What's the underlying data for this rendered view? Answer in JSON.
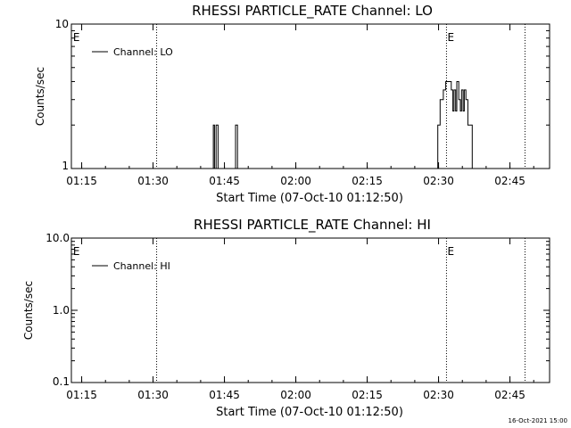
{
  "footer_timestamp": "16-Oct-2021 15:00",
  "chart_data": [
    {
      "type": "line",
      "title": "RHESSI PARTICLE_RATE Channel: LO",
      "xlabel": "Start Time (07-Oct-10 01:12:50)",
      "ylabel": "Counts/sec",
      "yscale": "log",
      "ylim": [
        1,
        10
      ],
      "xlim": [
        "01:12:50",
        "02:53:20"
      ],
      "x_ticks": [
        "01:15",
        "01:30",
        "01:45",
        "02:00",
        "02:15",
        "02:30",
        "02:45"
      ],
      "y_ticks": [
        "1",
        "10"
      ],
      "legend": {
        "label": "Channel: LO",
        "placement": "top-left"
      },
      "markers": [
        {
          "label": "E",
          "time": "01:13:00",
          "dotted": false
        },
        {
          "label": "",
          "time": "01:30:45",
          "dotted": true
        },
        {
          "label": "E",
          "time": "02:31:40",
          "dotted": true
        },
        {
          "label": "",
          "time": "02:48:10",
          "dotted": true
        }
      ],
      "series": [
        {
          "name": "Channel: LO",
          "points": [
            [
              "01:42:40",
              1
            ],
            [
              "01:42:40",
              2
            ],
            [
              "01:42:55",
              2
            ],
            [
              "01:42:55",
              1
            ],
            [
              "01:43:15",
              1
            ],
            [
              "01:43:15",
              2
            ],
            [
              "01:43:40",
              2
            ],
            [
              "01:43:40",
              1
            ],
            [
              "01:47:20",
              1
            ],
            [
              "01:47:20",
              2
            ],
            [
              "01:47:45",
              2
            ],
            [
              "01:47:45",
              1
            ],
            [
              "02:29:50",
              1
            ],
            [
              "02:29:50",
              2
            ],
            [
              "02:30:20",
              2
            ],
            [
              "02:30:20",
              3
            ],
            [
              "02:31:00",
              3
            ],
            [
              "02:31:00",
              3.5
            ],
            [
              "02:31:30",
              3.5
            ],
            [
              "02:31:30",
              4
            ],
            [
              "02:32:40",
              4
            ],
            [
              "02:32:40",
              3.5
            ],
            [
              "02:33:00",
              3.5
            ],
            [
              "02:33:00",
              2.5
            ],
            [
              "02:33:15",
              2.5
            ],
            [
              "02:33:15",
              3.5
            ],
            [
              "02:33:35",
              3.5
            ],
            [
              "02:33:35",
              2.5
            ],
            [
              "02:33:50",
              2.5
            ],
            [
              "02:33:50",
              4
            ],
            [
              "02:34:15",
              4
            ],
            [
              "02:34:15",
              3
            ],
            [
              "02:34:35",
              3
            ],
            [
              "02:34:35",
              2.5
            ],
            [
              "02:34:50",
              2.5
            ],
            [
              "02:34:50",
              3.5
            ],
            [
              "02:35:10",
              3.5
            ],
            [
              "02:35:10",
              2.5
            ],
            [
              "02:35:25",
              2.5
            ],
            [
              "02:35:25",
              3.5
            ],
            [
              "02:35:45",
              3.5
            ],
            [
              "02:35:45",
              3
            ],
            [
              "02:36:10",
              3
            ],
            [
              "02:36:10",
              2
            ],
            [
              "02:37:05",
              2
            ],
            [
              "02:37:05",
              1
            ]
          ]
        }
      ]
    },
    {
      "type": "line",
      "title": "RHESSI PARTICLE_RATE Channel: HI",
      "xlabel": "Start Time (07-Oct-10 01:12:50)",
      "ylabel": "Counts/sec",
      "yscale": "log",
      "ylim": [
        0.1,
        10
      ],
      "xlim": [
        "01:12:50",
        "02:53:20"
      ],
      "x_ticks": [
        "01:15",
        "01:30",
        "01:45",
        "02:00",
        "02:15",
        "02:30",
        "02:45"
      ],
      "y_ticks": [
        "0.1",
        "1.0",
        "10.0"
      ],
      "legend": {
        "label": "Channel: HI",
        "placement": "top-left"
      },
      "markers": [
        {
          "label": "E",
          "time": "01:13:00",
          "dotted": false
        },
        {
          "label": "",
          "time": "01:30:45",
          "dotted": true
        },
        {
          "label": "E",
          "time": "02:31:40",
          "dotted": true
        },
        {
          "label": "",
          "time": "02:48:10",
          "dotted": true
        }
      ],
      "series": [
        {
          "name": "Channel: HI",
          "points": []
        }
      ]
    }
  ]
}
